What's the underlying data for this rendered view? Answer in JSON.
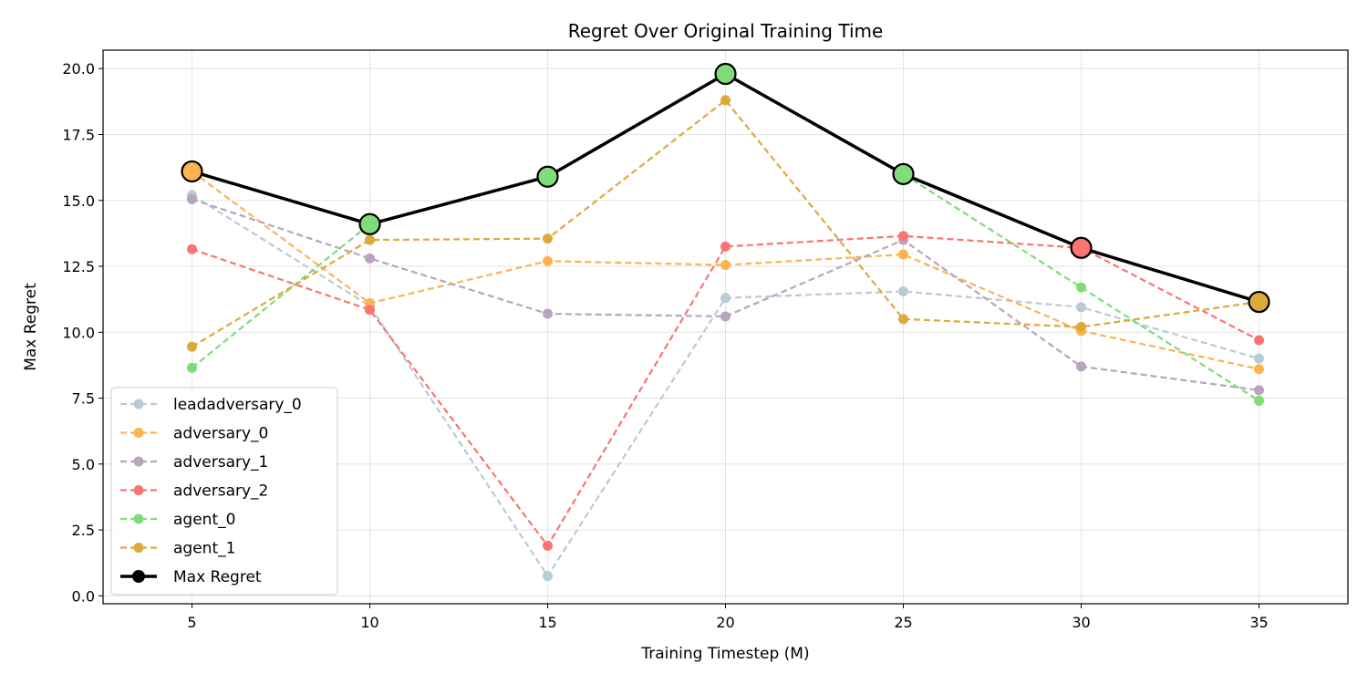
{
  "chart_data": {
    "type": "line",
    "title": "Regret Over Original Training Time",
    "xlabel": "Training Timestep (M)",
    "ylabel": "Max Regret",
    "x": [
      5,
      10,
      15,
      20,
      25,
      30,
      35
    ],
    "xlim": [
      2.5,
      37.5
    ],
    "ylim": [
      -0.3,
      20.7
    ],
    "xticks": [
      5,
      10,
      15,
      20,
      25,
      30,
      35
    ],
    "yticks": [
      0.0,
      2.5,
      5.0,
      7.5,
      10.0,
      12.5,
      15.0,
      17.5,
      20.0
    ],
    "ytick_labels": [
      "0.0",
      "2.5",
      "5.0",
      "7.5",
      "10.0",
      "12.5",
      "15.0",
      "17.5",
      "20.0"
    ],
    "grid": true,
    "legend_position": "lower-left",
    "series": [
      {
        "name": "leadadversary_0",
        "color": "#b8ccd6",
        "style": "dashed",
        "values": [
          15.2,
          11.0,
          0.75,
          11.3,
          11.55,
          10.95,
          9.0
        ]
      },
      {
        "name": "adversary_0",
        "color": "#fbb450",
        "style": "dashed",
        "values": [
          16.1,
          11.1,
          12.7,
          12.55,
          12.95,
          10.05,
          8.6
        ]
      },
      {
        "name": "adversary_1",
        "color": "#b8a4be",
        "style": "dashed",
        "values": [
          15.05,
          12.8,
          10.7,
          10.6,
          13.5,
          8.7,
          7.8
        ]
      },
      {
        "name": "adversary_2",
        "color": "#f87572",
        "style": "dashed",
        "values": [
          13.15,
          10.85,
          1.9,
          13.25,
          13.65,
          13.2,
          9.7
        ]
      },
      {
        "name": "agent_0",
        "color": "#7fdc78",
        "style": "dashed",
        "values": [
          8.65,
          14.1,
          15.9,
          19.8,
          16.0,
          11.7,
          7.4
        ]
      },
      {
        "name": "agent_1",
        "color": "#dcaa3a",
        "style": "dashed",
        "values": [
          9.45,
          13.5,
          13.55,
          18.8,
          10.5,
          10.2,
          11.15
        ]
      },
      {
        "name": "Max Regret",
        "color": "#000000",
        "style": "solid",
        "values": [
          16.1,
          14.1,
          15.9,
          19.8,
          16.0,
          13.2,
          11.15
        ],
        "marker_colors": [
          "#fbb450",
          "#7fdc78",
          "#7fdc78",
          "#7fdc78",
          "#7fdc78",
          "#f87572",
          "#dcaa3a"
        ]
      }
    ]
  }
}
